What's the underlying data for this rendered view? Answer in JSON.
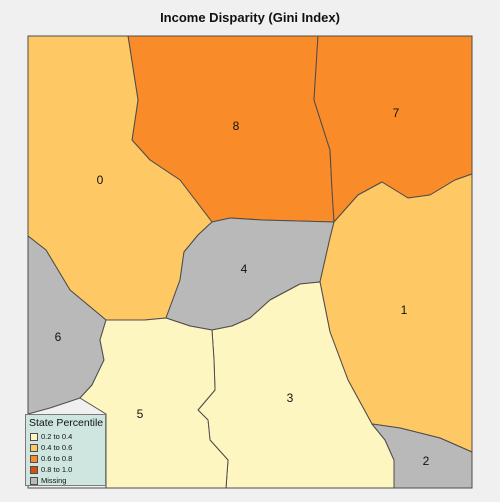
{
  "title": "Income Disparity (Gini Index)",
  "legend": {
    "title": "State Percentile",
    "items": [
      {
        "label": "0.2 to 0.4",
        "color": "#fef6c1"
      },
      {
        "label": "0.4 to 0.6",
        "color": "#fec964"
      },
      {
        "label": "0.6 to 0.8",
        "color": "#f98b29"
      },
      {
        "label": "0.8 to 1.0",
        "color": "#d84e0c"
      },
      {
        "label": "Missing",
        "color": "#b9b9b9"
      }
    ]
  },
  "regions": [
    {
      "id": "0",
      "label": "0",
      "category": "0.4 to 0.6",
      "color": "#fec964"
    },
    {
      "id": "1",
      "label": "1",
      "category": "0.4 to 0.6",
      "color": "#fec964"
    },
    {
      "id": "2",
      "label": "2",
      "category": "Missing",
      "color": "#b9b9b9"
    },
    {
      "id": "3",
      "label": "3",
      "category": "0.2 to 0.4",
      "color": "#fef6c1"
    },
    {
      "id": "4",
      "label": "4",
      "category": "Missing",
      "color": "#b9b9b9"
    },
    {
      "id": "5",
      "label": "5",
      "category": "0.2 to 0.4",
      "color": "#fef6c1"
    },
    {
      "id": "6",
      "label": "6",
      "category": "Missing",
      "color": "#b9b9b9"
    },
    {
      "id": "7",
      "label": "7",
      "category": "0.6 to 0.8",
      "color": "#f98b29"
    },
    {
      "id": "8",
      "label": "8",
      "category": "0.6 to 0.8",
      "color": "#f98b29"
    }
  ]
}
